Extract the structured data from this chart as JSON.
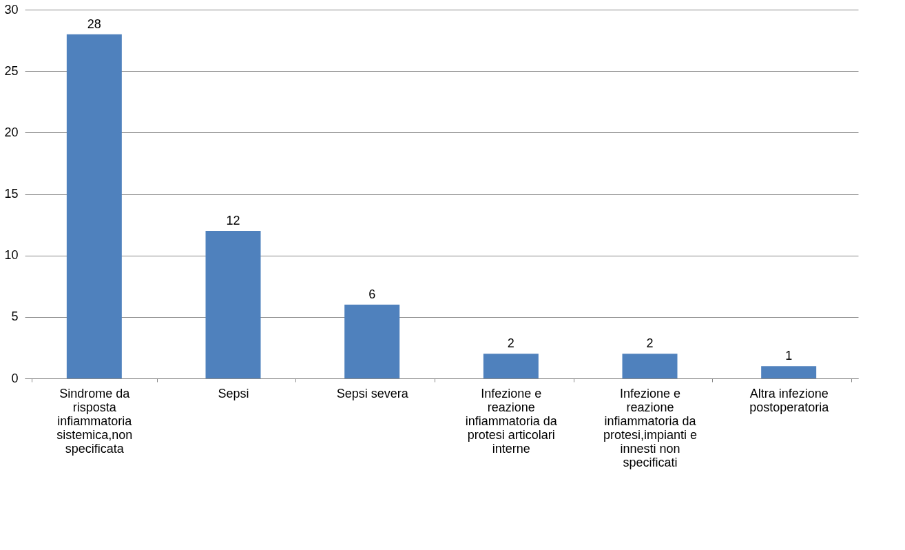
{
  "chart_data": {
    "type": "bar",
    "categories": [
      "Sindrome da risposta infiammatoria sistemica,non specificata",
      "Sepsi",
      "Sepsi severa",
      "Infezione e reazione infiammatoria da protesi articolari interne",
      "Infezione e reazione infiammatoria da protesi,impianti e innesti non specificati",
      "Altra infezione postoperatoria"
    ],
    "values": [
      28,
      12,
      6,
      2,
      2,
      1
    ],
    "color": "#4f81bd",
    "ylim": [
      0,
      30
    ],
    "yticks": [
      0,
      5,
      10,
      15,
      20,
      25,
      30
    ],
    "grid": "y",
    "data_labels": true
  }
}
